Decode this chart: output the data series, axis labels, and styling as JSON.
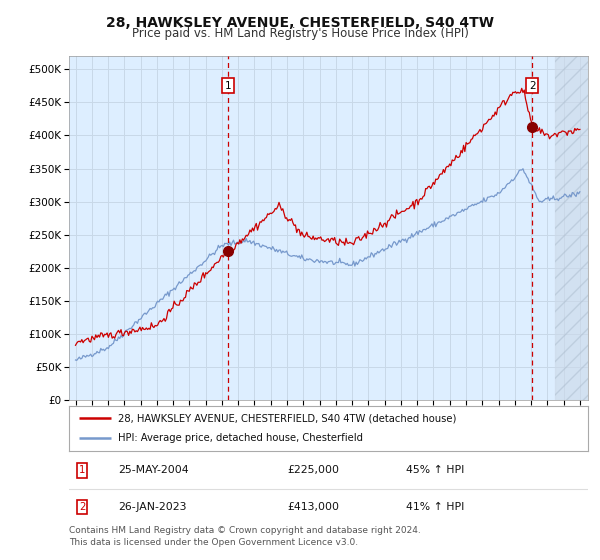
{
  "title": "28, HAWKSLEY AVENUE, CHESTERFIELD, S40 4TW",
  "subtitle": "Price paid vs. HM Land Registry's House Price Index (HPI)",
  "title_fontsize": 10,
  "subtitle_fontsize": 8.5,
  "xlim": [
    1994.6,
    2026.5
  ],
  "ylim": [
    0,
    520000
  ],
  "yticks": [
    0,
    50000,
    100000,
    150000,
    200000,
    250000,
    300000,
    350000,
    400000,
    450000,
    500000
  ],
  "ytick_labels": [
    "£0",
    "£50K",
    "£100K",
    "£150K",
    "£200K",
    "£250K",
    "£300K",
    "£350K",
    "£400K",
    "£450K",
    "£500K"
  ],
  "grid_color": "#c8d8e8",
  "plot_bg_color": "#ddeeff",
  "red_line_color": "#cc0000",
  "blue_line_color": "#7799cc",
  "marker_color": "#880000",
  "dashed_line_color": "#cc0000",
  "legend_label_red": "28, HAWKSLEY AVENUE, CHESTERFIELD, S40 4TW (detached house)",
  "legend_label_blue": "HPI: Average price, detached house, Chesterfield",
  "annotation1_date": 2004.39,
  "annotation1_price": 225000,
  "annotation1_text": "25-MAY-2004",
  "annotation1_price_text": "£225,000",
  "annotation1_pct_text": "45% ↑ HPI",
  "annotation2_date": 2023.07,
  "annotation2_price": 413000,
  "annotation2_text": "26-JAN-2023",
  "annotation2_price_text": "£413,000",
  "annotation2_pct_text": "41% ↑ HPI",
  "footer_text": "Contains HM Land Registry data © Crown copyright and database right 2024.\nThis data is licensed under the Open Government Licence v3.0.",
  "footer_fontsize": 6.5,
  "hatch_start": 2024.5
}
